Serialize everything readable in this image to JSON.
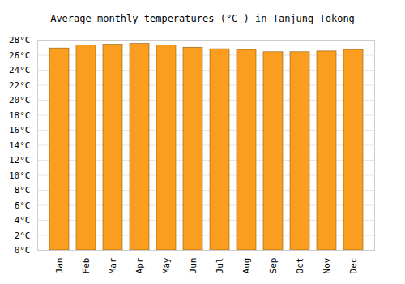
{
  "chart_data": {
    "type": "bar",
    "title": "Average monthly temperatures (°C ) in Tanjung Tokong",
    "categories": [
      "Jan",
      "Feb",
      "Mar",
      "Apr",
      "May",
      "Jun",
      "Jul",
      "Aug",
      "Sep",
      "Oct",
      "Nov",
      "Dec"
    ],
    "values": [
      26.9,
      27.3,
      27.4,
      27.5,
      27.3,
      27.0,
      26.8,
      26.7,
      26.4,
      26.4,
      26.5,
      26.7
    ],
    "color": "#fb9e1f",
    "ylim": [
      0,
      28
    ],
    "yticks": [
      {
        "value": 0,
        "label": "0°C"
      },
      {
        "value": 2,
        "label": "2°C"
      },
      {
        "value": 4,
        "label": "4°C"
      },
      {
        "value": 6,
        "label": "6°C"
      },
      {
        "value": 8,
        "label": "8°C"
      },
      {
        "value": 10,
        "label": "10°C"
      },
      {
        "value": 12,
        "label": "12°C"
      },
      {
        "value": 14,
        "label": "14°C"
      },
      {
        "value": 16,
        "label": "16°C"
      },
      {
        "value": 18,
        "label": "18°C"
      },
      {
        "value": 20,
        "label": "20°C"
      },
      {
        "value": 22,
        "label": "22°C"
      },
      {
        "value": 24,
        "label": "24°C"
      },
      {
        "value": 26,
        "label": "26°C"
      },
      {
        "value": 28,
        "label": "28°C"
      }
    ],
    "grid": true
  }
}
